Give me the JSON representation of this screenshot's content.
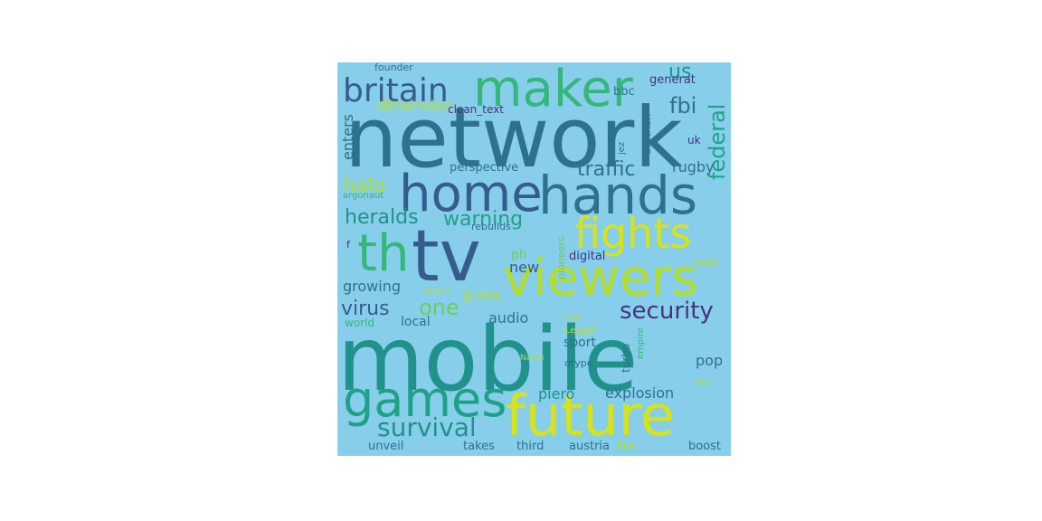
{
  "palette": {
    "background": "#87ceeb",
    "dark_purple": "#46337e",
    "blue": "#365c8d",
    "teal_blue": "#2c728e",
    "teal": "#21918c",
    "green_teal": "#1fa187",
    "green": "#35b779",
    "lime": "#6ece58",
    "yellow_green": "#b5de2b",
    "yellow": "#d8e219"
  },
  "wordcloud": {
    "words": [
      {
        "text": "network",
        "color": "#2c728e",
        "orientation": "horizontal"
      },
      {
        "text": "mobile",
        "color": "#21918c",
        "orientation": "horizontal"
      },
      {
        "text": "tv",
        "color": "#365c8d",
        "orientation": "horizontal"
      },
      {
        "text": "th",
        "color": "#35b779",
        "orientation": "horizontal"
      },
      {
        "text": "hands",
        "color": "#2c728e",
        "orientation": "horizontal"
      },
      {
        "text": "home",
        "color": "#365c8d",
        "orientation": "horizontal"
      },
      {
        "text": "maker",
        "color": "#35b779",
        "orientation": "horizontal"
      },
      {
        "text": "viewers",
        "color": "#b5de2b",
        "orientation": "horizontal"
      },
      {
        "text": "future",
        "color": "#d8e219",
        "orientation": "horizontal"
      },
      {
        "text": "games",
        "color": "#1fa187",
        "orientation": "horizontal"
      },
      {
        "text": "fights",
        "color": "#d8e219",
        "orientation": "horizontal"
      },
      {
        "text": "britain",
        "color": "#365c8d",
        "orientation": "horizontal"
      },
      {
        "text": "survival",
        "color": "#21918c",
        "orientation": "horizontal"
      },
      {
        "text": "security",
        "color": "#46337e",
        "orientation": "horizontal"
      },
      {
        "text": "one",
        "color": "#6ece58",
        "orientation": "horizontal"
      },
      {
        "text": "traffic",
        "color": "#2c728e",
        "orientation": "horizontal"
      },
      {
        "text": "heralds",
        "color": "#21918c",
        "orientation": "horizontal"
      },
      {
        "text": "warning",
        "color": "#1fa187",
        "orientation": "horizontal"
      },
      {
        "text": "halo",
        "color": "#b5de2b",
        "orientation": "horizontal"
      },
      {
        "text": "fbi",
        "color": "#2c728e",
        "orientation": "horizontal"
      },
      {
        "text": "us",
        "color": "#21918c",
        "orientation": "horizontal"
      },
      {
        "text": "federal",
        "color": "#1fa187",
        "orientation": "vertical"
      },
      {
        "text": "virus",
        "color": "#365c8d",
        "orientation": "horizontal"
      },
      {
        "text": "explosion",
        "color": "#2c728e",
        "orientation": "horizontal"
      },
      {
        "text": "growing",
        "color": "#2c728e",
        "orientation": "horizontal"
      },
      {
        "text": "audio",
        "color": "#2c728e",
        "orientation": "horizontal"
      },
      {
        "text": "rugby",
        "color": "#2c728e",
        "orientation": "horizontal"
      },
      {
        "text": "piero",
        "color": "#21918c",
        "orientation": "horizontal"
      },
      {
        "text": "dimension",
        "color": "#b5de2b",
        "orientation": "horizontal"
      },
      {
        "text": "gives",
        "color": "#b5de2b",
        "orientation": "horizontal"
      },
      {
        "text": "pop",
        "color": "#2c728e",
        "orientation": "horizontal"
      },
      {
        "text": "new",
        "color": "#365c8d",
        "orientation": "horizontal"
      },
      {
        "text": "enters",
        "color": "#2c728e",
        "orientation": "vertical"
      },
      {
        "text": "sport",
        "color": "#2c728e",
        "orientation": "horizontal"
      },
      {
        "text": "local",
        "color": "#2c728e",
        "orientation": "horizontal"
      },
      {
        "text": "perspective",
        "color": "#2c728e",
        "orientation": "horizontal"
      },
      {
        "text": "ph",
        "color": "#6ece58",
        "orientation": "horizontal"
      },
      {
        "text": "bbc",
        "color": "#2c728e",
        "orientation": "horizontal"
      },
      {
        "text": "generat",
        "color": "#46337e",
        "orientation": "horizontal"
      },
      {
        "text": "clean_text",
        "color": "#46337e",
        "orientation": "horizontal"
      },
      {
        "text": "digital",
        "color": "#46337e",
        "orientation": "horizontal"
      },
      {
        "text": "austria",
        "color": "#2c728e",
        "orientation": "horizontal"
      },
      {
        "text": "third",
        "color": "#2c728e",
        "orientation": "horizontal"
      },
      {
        "text": "takes",
        "color": "#2c728e",
        "orientation": "horizontal"
      },
      {
        "text": "unveil",
        "color": "#2c728e",
        "orientation": "horizontal"
      },
      {
        "text": "boost",
        "color": "#2c728e",
        "orientation": "horizontal"
      },
      {
        "text": "uk",
        "color": "#46337e",
        "orientation": "horizontal"
      },
      {
        "text": "founder",
        "color": "#2c728e",
        "orientation": "horizontal"
      },
      {
        "text": "rebuilds",
        "color": "#2c728e",
        "orientation": "horizontal"
      },
      {
        "text": "argonaut",
        "color": "#35b779",
        "orientation": "horizontal"
      },
      {
        "text": "f",
        "color": "#46337e",
        "orientation": "horizontal"
      },
      {
        "text": "world",
        "color": "#35b779",
        "orientation": "horizontal"
      },
      {
        "text": "pioneers",
        "color": "#6ece58",
        "orientation": "vertical"
      },
      {
        "text": "seek",
        "color": "#b5de2b",
        "orientation": "horizontal"
      },
      {
        "text": "net",
        "color": "#b5de2b",
        "orientation": "horizontal"
      },
      {
        "text": "object",
        "color": "#b5de2b",
        "orientation": "horizontal"
      },
      {
        "text": "Length",
        "color": "#b5de2b",
        "orientation": "horizontal"
      },
      {
        "text": "dtype",
        "color": "#2c728e",
        "orientation": "horizontal"
      },
      {
        "text": "Name",
        "color": "#b5de2b",
        "orientation": "horizontal"
      },
      {
        "text": "film",
        "color": "#b5de2b",
        "orientation": "horizontal"
      },
      {
        "text": "turbo",
        "color": "#2c728e",
        "orientation": "vertical"
      },
      {
        "text": "empire",
        "color": "#35b779",
        "orientation": "vertical"
      },
      {
        "text": "jez",
        "color": "#2c728e",
        "orientation": "vertical"
      },
      {
        "text": "austrian",
        "color": "#2c728e",
        "orientation": "vertical"
      },
      {
        "text": "san",
        "color": "#b5de2b",
        "orientation": "horizontal"
      }
    ]
  }
}
